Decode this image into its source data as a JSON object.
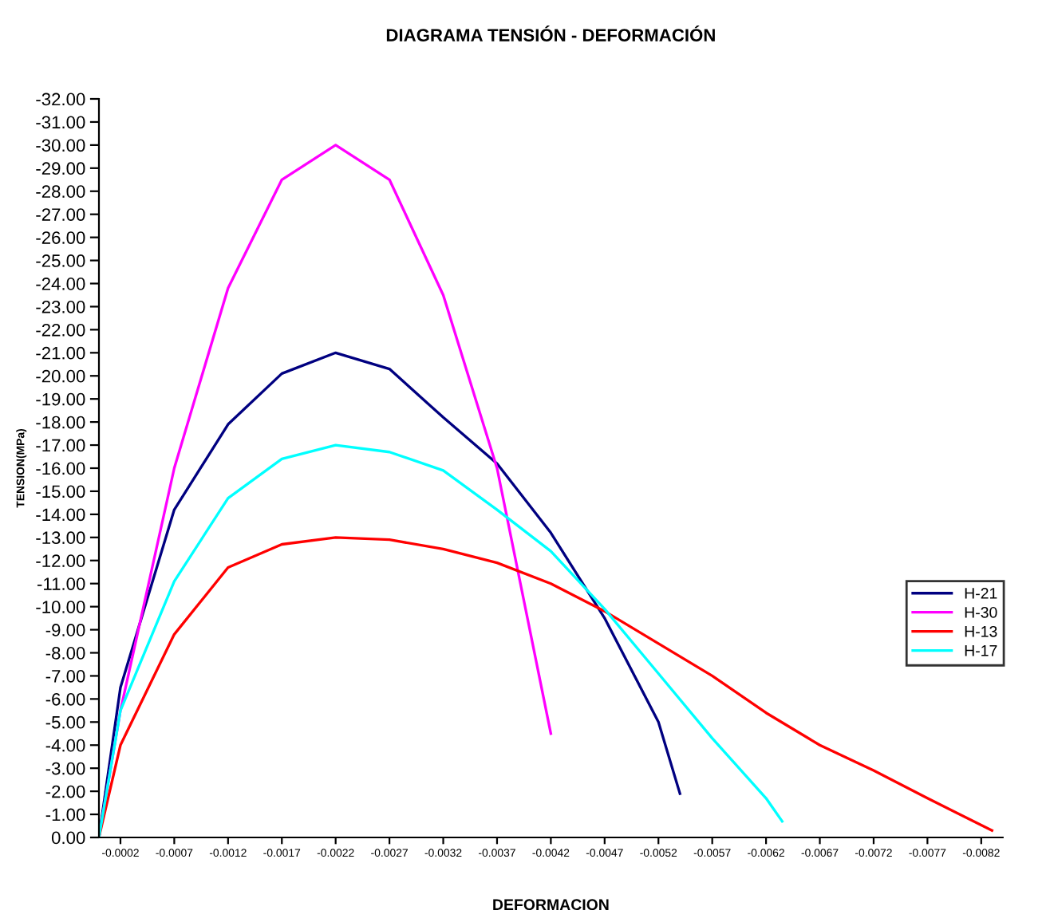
{
  "chart_data": {
    "type": "line",
    "title": "DIAGRAMA TENSIÓN - DEFORMACIÓN",
    "xlabel": "DEFORMACION",
    "ylabel": "TENSION(MPa)",
    "xlim": [
      0,
      -0.0084
    ],
    "ylim": [
      0,
      -32
    ],
    "xticks": [
      -0.0002,
      -0.0007,
      -0.0012,
      -0.0017,
      -0.0022,
      -0.0027,
      -0.0032,
      -0.0037,
      -0.0042,
      -0.0047,
      -0.0052,
      -0.0057,
      -0.0062,
      -0.0067,
      -0.0072,
      -0.0077,
      -0.0082
    ],
    "yticks": [
      {
        "value": 0,
        "label": "0.00"
      },
      {
        "value": -1,
        "label": "-1.00"
      },
      {
        "value": -2,
        "label": "-2.00"
      },
      {
        "value": -3,
        "label": "-3.00"
      },
      {
        "value": -4,
        "label": "-4.00"
      },
      {
        "value": -5,
        "label": "-5.00"
      },
      {
        "value": -6,
        "label": "-6.00"
      },
      {
        "value": -7,
        "label": "-7.00"
      },
      {
        "value": -8,
        "label": "-8.00"
      },
      {
        "value": -9,
        "label": "-9.00"
      },
      {
        "value": -10,
        "label": "-10.00"
      },
      {
        "value": -11,
        "label": "-11.00"
      },
      {
        "value": -12,
        "label": "-12.00"
      },
      {
        "value": -13,
        "label": "-13.00"
      },
      {
        "value": -14,
        "label": "-14.00"
      },
      {
        "value": -15,
        "label": "-15.00"
      },
      {
        "value": -16,
        "label": "-16.00"
      },
      {
        "value": -17,
        "label": "-17.00"
      },
      {
        "value": -18,
        "label": "-18.00"
      },
      {
        "value": -19,
        "label": "-19.00"
      },
      {
        "value": -20,
        "label": "-20.00"
      },
      {
        "value": -21,
        "label": "-21.00"
      },
      {
        "value": -22,
        "label": "-22.00"
      },
      {
        "value": -23,
        "label": "-23.00"
      },
      {
        "value": -24,
        "label": "-24.00"
      },
      {
        "value": -25,
        "label": "-25.00"
      },
      {
        "value": -26,
        "label": "-26.00"
      },
      {
        "value": -27,
        "label": "-27.00"
      },
      {
        "value": -28,
        "label": "-28.00"
      },
      {
        "value": -29,
        "label": "-29.00"
      },
      {
        "value": -30,
        "label": "-30.00"
      },
      {
        "value": -31,
        "label": "-31.00"
      },
      {
        "value": -32,
        "label": "-32.00"
      }
    ],
    "grid": false,
    "legend": "right",
    "marker": "none",
    "line_style": "solid",
    "series": [
      {
        "name": "H-21",
        "color": "#000080",
        "x": [
          0,
          -0.0002,
          -0.0007,
          -0.0012,
          -0.0017,
          -0.0022,
          -0.0027,
          -0.0032,
          -0.0037,
          -0.0042,
          -0.0047,
          -0.0052,
          -0.0054
        ],
        "values": [
          0,
          -6.5,
          -14.2,
          -17.9,
          -20.1,
          -21,
          -20.3,
          -18.2,
          -16.2,
          -13.2,
          -9.5,
          -5,
          -1.9
        ]
      },
      {
        "name": "H-30",
        "color": "#ff00ff",
        "x": [
          0,
          -0.0002,
          -0.0007,
          -0.0012,
          -0.0017,
          -0.0022,
          -0.0027,
          -0.0032,
          -0.0037,
          -0.0042
        ],
        "values": [
          0,
          -5.5,
          -16,
          -23.8,
          -28.5,
          -30,
          -28.5,
          -23.5,
          -16,
          -4.5
        ]
      },
      {
        "name": "H-13",
        "color": "#ff0000",
        "x": [
          0,
          -0.0002,
          -0.0007,
          -0.0012,
          -0.0017,
          -0.0022,
          -0.0027,
          -0.0032,
          -0.0037,
          -0.0042,
          -0.0047,
          -0.0052,
          -0.0057,
          -0.0062,
          -0.0067,
          -0.0072,
          -0.0077,
          -0.0083
        ],
        "values": [
          0,
          -4,
          -8.8,
          -11.7,
          -12.7,
          -13,
          -12.9,
          -12.5,
          -11.9,
          -11,
          -9.8,
          -8.4,
          -7,
          -5.4,
          -4,
          -2.9,
          -1.7,
          -0.3
        ]
      },
      {
        "name": "H-17",
        "color": "#00ffff",
        "x": [
          0,
          -0.0002,
          -0.0007,
          -0.0012,
          -0.0017,
          -0.0022,
          -0.0027,
          -0.0032,
          -0.0037,
          -0.0042,
          -0.0047,
          -0.0052,
          -0.0057,
          -0.0062,
          -0.00635
        ],
        "values": [
          0,
          -5.5,
          -11.1,
          -14.7,
          -16.4,
          -17,
          -16.7,
          -15.9,
          -14.2,
          -12.4,
          -9.9,
          -7.1,
          -4.3,
          -1.7,
          -0.7
        ]
      }
    ]
  }
}
